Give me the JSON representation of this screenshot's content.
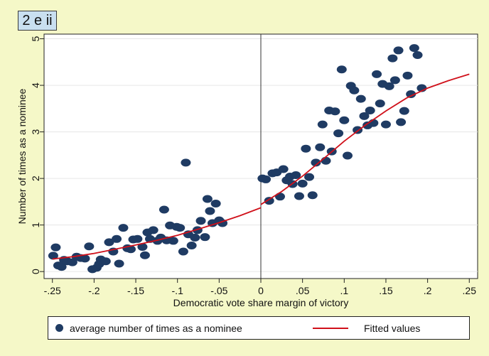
{
  "panel_tag": "2 e ii",
  "colors": {
    "background": "#f5f8c8",
    "points": "#1f3b63",
    "fit_line": "#d0101a",
    "tag_fill": "#c9dff0"
  },
  "legend": {
    "scatter_label": "average number of times as a nominee",
    "line_label": "Fitted values"
  },
  "chart_data": {
    "type": "scatter",
    "xlabel": "Democratic vote share margin of victory",
    "ylabel": "Number of times as a nominee",
    "xlim": [
      -0.26,
      0.26
    ],
    "ylim": [
      -0.15,
      5.1
    ],
    "x_ticks": [
      -0.25,
      -0.2,
      -0.15,
      -0.1,
      -0.05,
      0,
      0.05,
      0.1,
      0.15,
      0.2,
      0.25
    ],
    "x_tick_labels": [
      "-.25",
      "-.2",
      "-.15",
      "-.1",
      "-.05",
      "0",
      ".05",
      ".1",
      ".15",
      ".2",
      ".25"
    ],
    "y_ticks": [
      0,
      1,
      2,
      3,
      4,
      5
    ],
    "y_tick_labels": [
      "0",
      "1",
      "2",
      "3",
      "4",
      "5"
    ],
    "grid": "horizontal",
    "cutoff_line": 0,
    "legend_position": "bottom",
    "series": [
      {
        "kind": "scatter",
        "points": [
          [
            -0.249,
            0.34
          ],
          [
            -0.246,
            0.52
          ],
          [
            -0.243,
            0.13
          ],
          [
            -0.239,
            0.1
          ],
          [
            -0.236,
            0.25
          ],
          [
            -0.232,
            0.22
          ],
          [
            -0.226,
            0.2
          ],
          [
            -0.221,
            0.32
          ],
          [
            -0.216,
            0.29
          ],
          [
            -0.211,
            0.28
          ],
          [
            -0.206,
            0.54
          ],
          [
            -0.202,
            0.05
          ],
          [
            -0.197,
            0.08
          ],
          [
            -0.194,
            0.16
          ],
          [
            -0.192,
            0.26
          ],
          [
            -0.186,
            0.22
          ],
          [
            -0.182,
            0.63
          ],
          [
            -0.177,
            0.43
          ],
          [
            -0.173,
            0.7
          ],
          [
            -0.17,
            0.17
          ],
          [
            -0.165,
            0.94
          ],
          [
            -0.16,
            0.5
          ],
          [
            -0.156,
            0.48
          ],
          [
            -0.153,
            0.69
          ],
          [
            -0.148,
            0.7
          ],
          [
            -0.142,
            0.53
          ],
          [
            -0.139,
            0.35
          ],
          [
            -0.136,
            0.84
          ],
          [
            -0.133,
            0.7
          ],
          [
            -0.129,
            0.89
          ],
          [
            -0.124,
            0.66
          ],
          [
            -0.12,
            0.73
          ],
          [
            -0.116,
            1.33
          ],
          [
            -0.113,
            0.67
          ],
          [
            -0.109,
            0.99
          ],
          [
            -0.105,
            0.66
          ],
          [
            -0.101,
            0.96
          ],
          [
            -0.097,
            0.94
          ],
          [
            -0.093,
            0.43
          ],
          [
            -0.09,
            2.34
          ],
          [
            -0.087,
            0.8
          ],
          [
            -0.083,
            0.56
          ],
          [
            -0.079,
            0.73
          ],
          [
            -0.076,
            0.89
          ],
          [
            -0.072,
            1.09
          ],
          [
            -0.067,
            0.74
          ],
          [
            -0.064,
            1.56
          ],
          [
            -0.061,
            1.3
          ],
          [
            -0.058,
            1.04
          ],
          [
            -0.054,
            1.46
          ],
          [
            -0.05,
            1.1
          ],
          [
            -0.046,
            1.04
          ],
          [
            0.002,
            2.0
          ],
          [
            0.006,
            1.98
          ],
          [
            0.01,
            1.52
          ],
          [
            0.014,
            2.11
          ],
          [
            0.019,
            2.13
          ],
          [
            0.023,
            1.61
          ],
          [
            0.027,
            2.2
          ],
          [
            0.031,
            1.96
          ],
          [
            0.035,
            2.04
          ],
          [
            0.038,
            1.88
          ],
          [
            0.042,
            2.07
          ],
          [
            0.046,
            1.62
          ],
          [
            0.05,
            1.89
          ],
          [
            0.054,
            2.64
          ],
          [
            0.058,
            2.03
          ],
          [
            0.062,
            1.64
          ],
          [
            0.066,
            2.34
          ],
          [
            0.071,
            2.67
          ],
          [
            0.074,
            3.16
          ],
          [
            0.078,
            2.38
          ],
          [
            0.082,
            3.46
          ],
          [
            0.085,
            2.58
          ],
          [
            0.089,
            3.44
          ],
          [
            0.093,
            2.97
          ],
          [
            0.097,
            4.34
          ],
          [
            0.1,
            3.25
          ],
          [
            0.104,
            2.49
          ],
          [
            0.108,
            3.99
          ],
          [
            0.112,
            3.89
          ],
          [
            0.116,
            3.04
          ],
          [
            0.12,
            3.71
          ],
          [
            0.124,
            3.34
          ],
          [
            0.128,
            3.14
          ],
          [
            0.131,
            3.46
          ],
          [
            0.135,
            3.19
          ],
          [
            0.139,
            4.24
          ],
          [
            0.143,
            3.61
          ],
          [
            0.146,
            4.03
          ],
          [
            0.15,
            3.16
          ],
          [
            0.154,
            3.98
          ],
          [
            0.158,
            4.58
          ],
          [
            0.161,
            4.11
          ],
          [
            0.165,
            4.75
          ],
          [
            0.168,
            3.21
          ],
          [
            0.172,
            3.45
          ],
          [
            0.176,
            4.21
          ],
          [
            0.18,
            3.81
          ],
          [
            0.184,
            4.8
          ],
          [
            0.188,
            4.65
          ],
          [
            0.193,
            3.94
          ]
        ]
      },
      {
        "kind": "line",
        "left": [
          [
            -0.25,
            0.27
          ],
          [
            -0.225,
            0.32
          ],
          [
            -0.2,
            0.39
          ],
          [
            -0.175,
            0.48
          ],
          [
            -0.15,
            0.57
          ],
          [
            -0.125,
            0.67
          ],
          [
            -0.1,
            0.78
          ],
          [
            -0.075,
            0.91
          ],
          [
            -0.05,
            1.05
          ],
          [
            -0.025,
            1.2
          ],
          [
            0,
            1.37
          ]
        ],
        "right": [
          [
            0,
            1.44
          ],
          [
            0.025,
            1.72
          ],
          [
            0.05,
            2.05
          ],
          [
            0.075,
            2.42
          ],
          [
            0.1,
            2.8
          ],
          [
            0.125,
            3.14
          ],
          [
            0.15,
            3.45
          ],
          [
            0.175,
            3.73
          ],
          [
            0.2,
            3.94
          ],
          [
            0.225,
            4.1
          ],
          [
            0.25,
            4.24
          ]
        ]
      }
    ]
  }
}
